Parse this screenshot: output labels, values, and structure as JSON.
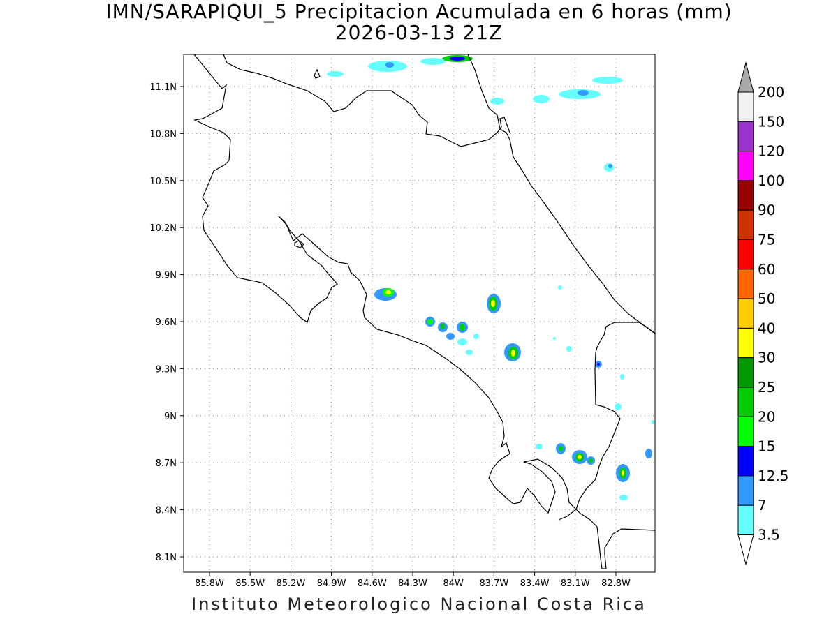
{
  "title": {
    "line1": "IMN/SARAPIQUI_5 Precipitacion Acumulada en 6 horas (mm)",
    "line2": "2026-03-13 21Z"
  },
  "footer": "Instituto Meteorologico Nacional Costa Rica",
  "map": {
    "lon_range": [
      -86.0,
      -82.6
    ],
    "lat_range": [
      8.0,
      11.3
    ],
    "x_ticks": [
      "85.8W",
      "85.5W",
      "85.2W",
      "84.9W",
      "84.6W",
      "84.3W",
      "84W",
      "83.7W",
      "83.4W",
      "83.1W",
      "82.8W"
    ],
    "y_ticks": [
      "11.1N",
      "10.8N",
      "10.5N",
      "10.2N",
      "9.9N",
      "9.6N",
      "9.3N",
      "9N",
      "8.7N",
      "8.4N",
      "8.1N"
    ],
    "grid": "dotted"
  },
  "colorbar": {
    "labels": [
      "200",
      "150",
      "120",
      "100",
      "90",
      "75",
      "60",
      "50",
      "40",
      "30",
      "25",
      "20",
      "15",
      "12.5",
      "7",
      "3.5"
    ],
    "colors": [
      "#f2f2f2",
      "#9933cc",
      "#ff00ff",
      "#990000",
      "#cc3300",
      "#ff0000",
      "#ff6600",
      "#ffcc00",
      "#ffff00",
      "#009900",
      "#00cc00",
      "#00ff00",
      "#0000ff",
      "#3399ff",
      "#66ffff"
    ],
    "top_arrow_color": "#aaaaaa",
    "bottom_arrow_color": "#ffffff"
  }
}
